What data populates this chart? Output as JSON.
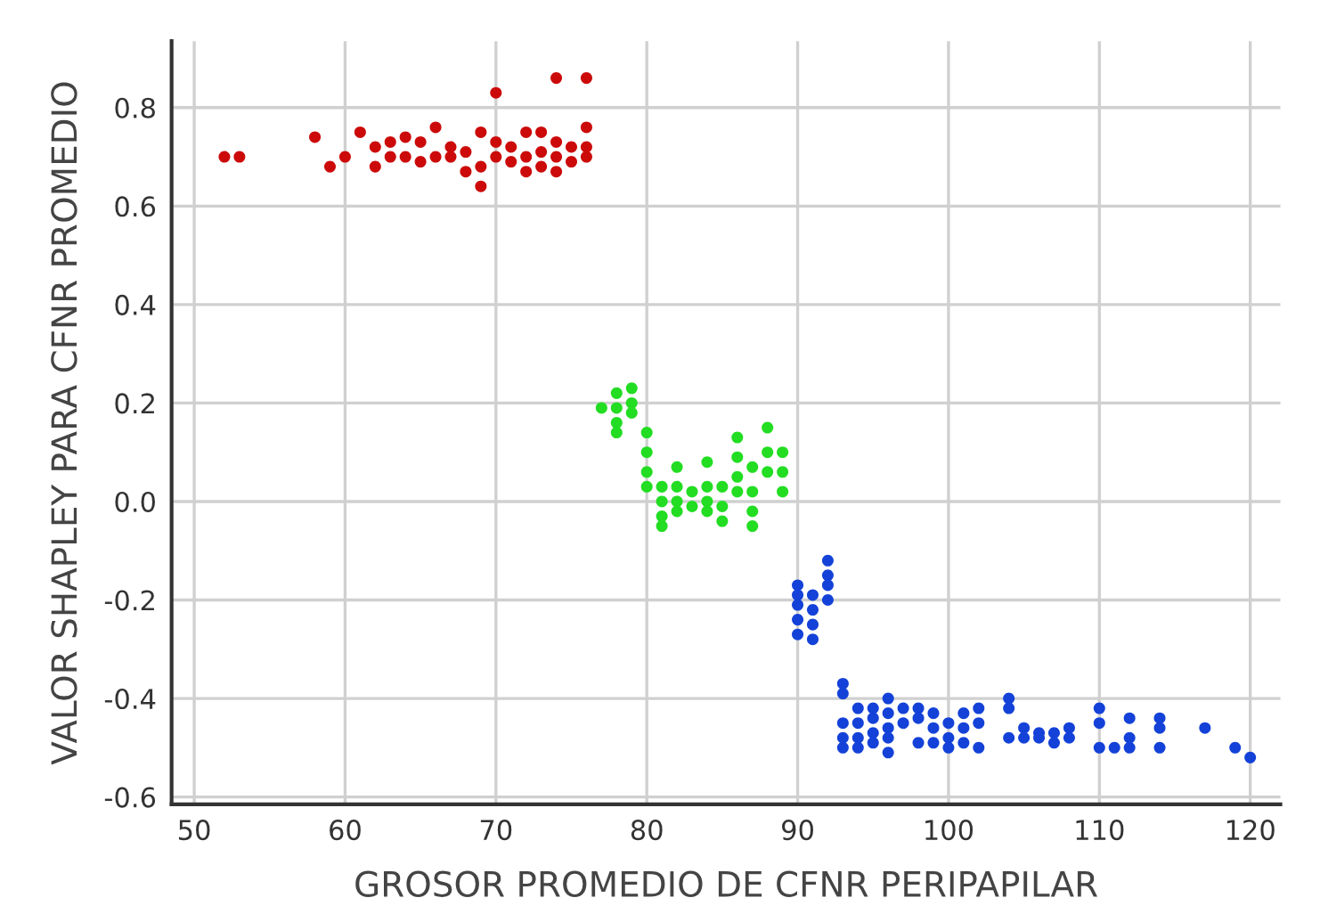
{
  "chart_data": {
    "type": "scatter",
    "xlabel": "GROSOR PROMEDIO DE CFNR PERIPAPILAR",
    "ylabel": "VALOR SHAPLEY PARA CFNR PROMEDIO",
    "xlim": [
      48.5,
      122
    ],
    "ylim": [
      -0.615,
      0.935
    ],
    "xticks": [
      50,
      60,
      70,
      80,
      90,
      100,
      110,
      120
    ],
    "yticks": [
      {
        "value": -0.6,
        "label": "-0.6"
      },
      {
        "value": -0.4,
        "label": "-0.4"
      },
      {
        "value": -0.2,
        "label": "-0.2"
      },
      {
        "value": 0.0,
        "label": "0.0"
      },
      {
        "value": 0.2,
        "label": "0.2"
      },
      {
        "value": 0.4,
        "label": "0.4"
      },
      {
        "value": 0.6,
        "label": "0.6"
      },
      {
        "value": 0.8,
        "label": "0.8"
      }
    ],
    "grid": true,
    "marker": "circle",
    "series": [
      {
        "color": "#cc0a0a",
        "x": [
          52,
          53,
          58,
          59,
          60,
          61,
          62,
          62,
          63,
          64,
          65,
          65,
          66,
          67,
          67,
          68,
          68,
          69,
          69,
          70,
          70,
          70,
          71,
          71,
          72,
          72,
          72,
          73,
          73,
          73,
          74,
          74,
          74,
          74,
          75,
          75,
          76,
          76,
          76,
          76,
          69,
          66,
          63,
          64
        ],
        "values": [
          0.7,
          0.7,
          0.74,
          0.68,
          0.7,
          0.75,
          0.68,
          0.72,
          0.7,
          0.7,
          0.69,
          0.73,
          0.76,
          0.7,
          0.72,
          0.67,
          0.71,
          0.68,
          0.75,
          0.83,
          0.7,
          0.73,
          0.72,
          0.69,
          0.75,
          0.7,
          0.67,
          0.75,
          0.71,
          0.68,
          0.86,
          0.73,
          0.7,
          0.67,
          0.72,
          0.69,
          0.86,
          0.76,
          0.72,
          0.7,
          0.64,
          0.7,
          0.73,
          0.74
        ]
      },
      {
        "color": "#22dd22",
        "x": [
          77,
          78,
          78,
          78,
          78,
          79,
          79,
          79,
          80,
          80,
          80,
          80,
          81,
          81,
          81,
          81,
          82,
          82,
          82,
          82,
          83,
          83,
          84,
          84,
          84,
          84,
          85,
          85,
          85,
          86,
          86,
          86,
          86,
          87,
          87,
          87,
          87,
          88,
          88,
          88,
          89,
          89,
          89
        ],
        "values": [
          0.19,
          0.22,
          0.19,
          0.16,
          0.14,
          0.23,
          0.2,
          0.18,
          0.14,
          0.1,
          0.06,
          0.03,
          0.03,
          0.0,
          -0.03,
          -0.05,
          0.07,
          0.03,
          0.0,
          -0.02,
          0.02,
          -0.01,
          0.08,
          0.03,
          0.0,
          -0.02,
          0.03,
          -0.01,
          -0.04,
          0.13,
          0.09,
          0.05,
          0.02,
          0.07,
          0.02,
          -0.02,
          -0.05,
          0.15,
          0.1,
          0.06,
          0.1,
          0.06,
          0.02
        ]
      },
      {
        "color": "#1442d8",
        "x": [
          90,
          90,
          90,
          90,
          90,
          91,
          91,
          91,
          91,
          92,
          92,
          92,
          92,
          93,
          93,
          93,
          93,
          93,
          94,
          94,
          94,
          94,
          95,
          95,
          95,
          95,
          96,
          96,
          96,
          96,
          96,
          97,
          97,
          98,
          98,
          98,
          99,
          99,
          99,
          100,
          100,
          100,
          101,
          101,
          101,
          102,
          102,
          102,
          104,
          104,
          104,
          105,
          105,
          106,
          106,
          107,
          107,
          108,
          108,
          110,
          110,
          110,
          111,
          112,
          112,
          112,
          114,
          114,
          114,
          117,
          119,
          120
        ],
        "values": [
          -0.17,
          -0.19,
          -0.21,
          -0.24,
          -0.27,
          -0.19,
          -0.22,
          -0.25,
          -0.28,
          -0.12,
          -0.15,
          -0.17,
          -0.2,
          -0.37,
          -0.39,
          -0.45,
          -0.48,
          -0.5,
          -0.42,
          -0.45,
          -0.48,
          -0.5,
          -0.42,
          -0.44,
          -0.47,
          -0.49,
          -0.4,
          -0.43,
          -0.46,
          -0.48,
          -0.51,
          -0.42,
          -0.45,
          -0.42,
          -0.44,
          -0.49,
          -0.43,
          -0.46,
          -0.49,
          -0.45,
          -0.48,
          -0.5,
          -0.43,
          -0.46,
          -0.49,
          -0.42,
          -0.45,
          -0.5,
          -0.4,
          -0.42,
          -0.48,
          -0.46,
          -0.48,
          -0.47,
          -0.48,
          -0.47,
          -0.49,
          -0.46,
          -0.48,
          -0.42,
          -0.45,
          -0.5,
          -0.5,
          -0.44,
          -0.48,
          -0.5,
          -0.44,
          -0.46,
          -0.5,
          -0.46,
          -0.5,
          -0.52
        ]
      }
    ]
  }
}
